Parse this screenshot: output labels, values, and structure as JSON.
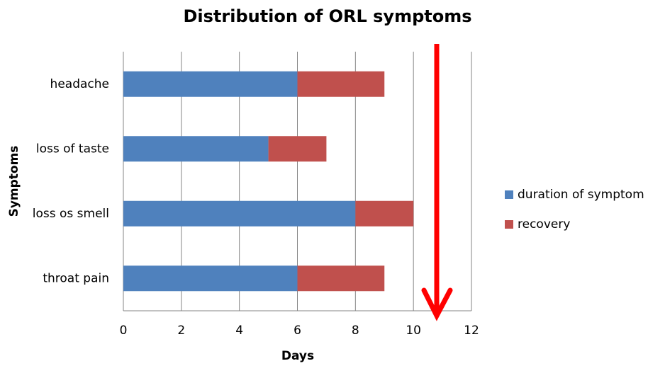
{
  "chart_data": {
    "type": "stacked_barh",
    "title": "Distribution of ORL symptoms",
    "xlabel": "Days",
    "ylabel": "Symptoms",
    "categories": [
      "headache",
      "loss of taste",
      "loss os smell",
      "throat pain"
    ],
    "series": [
      {
        "name": "duration of symptom",
        "color": "#4f81bd",
        "values": [
          6,
          5,
          8,
          6
        ]
      },
      {
        "name": "recovery",
        "color": "#c0504d",
        "values": [
          3,
          2,
          2,
          3
        ]
      }
    ],
    "xlim": [
      0,
      12
    ],
    "xticks": [
      0,
      2,
      4,
      6,
      8,
      10,
      12
    ],
    "grid": true,
    "legend": "right"
  }
}
